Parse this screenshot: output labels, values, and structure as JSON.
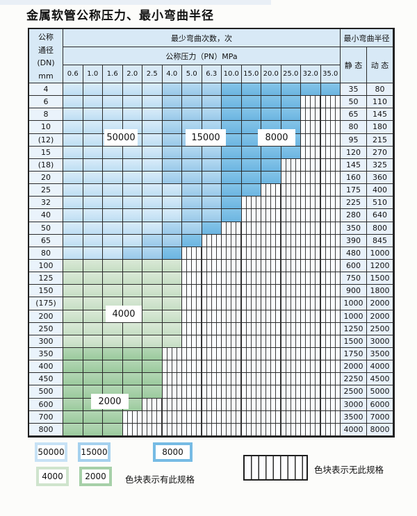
{
  "title": "金属软管公称压力、最小弯曲半径",
  "header": {
    "dn_lines": [
      "公称",
      "通径",
      "(DN)",
      "mm"
    ],
    "bend_times": "最少弯曲次数，次",
    "bend_radius": "最小弯曲半径",
    "pn": "公称压力（PN）MPa",
    "static": "静 态",
    "dynamic": "动 态",
    "pressures": [
      "0.6",
      "1.0",
      "1.6",
      "2.0",
      "2.5",
      "4.0",
      "5.0",
      "6.3",
      "10.0",
      "15.0",
      "20.0",
      "25.0",
      "32.0",
      "35.0"
    ]
  },
  "zone_labels": {
    "z50000": "50000",
    "z15000": "15000",
    "z8000": "8000",
    "z4000": "4000",
    "z2000": "2000"
  },
  "colors": {
    "blue_50000": "#c7e2f5",
    "blue_15000": "#a5d1ee",
    "blue_8000": "#76bbe4",
    "green_4000": "#cfe4cd",
    "green_2000": "#a6d0a8",
    "header_bg": "#d8e9f6",
    "label_col_bg": "#eaf3fb"
  },
  "rows": [
    {
      "dn": "4",
      "cells": [
        "50k",
        "50k",
        "50k",
        "50k",
        "50k",
        "15k",
        "15k",
        "15k",
        "8k",
        "8k",
        "8k",
        "8k",
        "8k",
        "8k"
      ],
      "st": "35",
      "dy": "80"
    },
    {
      "dn": "6",
      "cells": [
        "50k",
        "50k",
        "50k",
        "50k",
        "50k",
        "15k",
        "15k",
        "15k",
        "8k",
        "8k",
        "8k",
        "8k",
        "x",
        "x"
      ],
      "st": "50",
      "dy": "110"
    },
    {
      "dn": "8",
      "cells": [
        "50k",
        "50k",
        "50k",
        "50k",
        "50k",
        "15k",
        "15k",
        "15k",
        "8k",
        "8k",
        "8k",
        "8k",
        "x",
        "x"
      ],
      "st": "65",
      "dy": "145"
    },
    {
      "dn": "10",
      "cells": [
        "50k",
        "50k",
        "50k",
        "50k",
        "50k",
        "15k",
        "15k",
        "15k",
        "8k",
        "8k",
        "8k",
        "8k",
        "x",
        "x"
      ],
      "st": "80",
      "dy": "180"
    },
    {
      "dn": "(12)",
      "cells": [
        "50k",
        "50k",
        "50k",
        "50k",
        "50k",
        "15k",
        "15k",
        "15k",
        "8k",
        "8k",
        "8k",
        "8k",
        "x",
        "x"
      ],
      "st": "95",
      "dy": "215"
    },
    {
      "dn": "15",
      "cells": [
        "50k",
        "50k",
        "50k",
        "50k",
        "50k",
        "15k",
        "15k",
        "15k",
        "8k",
        "8k",
        "8k",
        "8k",
        "x",
        "x"
      ],
      "st": "120",
      "dy": "270"
    },
    {
      "dn": "(18)",
      "cells": [
        "50k",
        "50k",
        "50k",
        "50k",
        "50k",
        "15k",
        "15k",
        "15k",
        "8k",
        "8k",
        "8k",
        "x",
        "x",
        "x"
      ],
      "st": "145",
      "dy": "325"
    },
    {
      "dn": "20",
      "cells": [
        "50k",
        "50k",
        "50k",
        "50k",
        "50k",
        "15k",
        "15k",
        "15k",
        "8k",
        "8k",
        "8k",
        "x",
        "x",
        "x"
      ],
      "st": "160",
      "dy": "360"
    },
    {
      "dn": "25",
      "cells": [
        "50k",
        "50k",
        "50k",
        "50k",
        "50k",
        "50k",
        "15k",
        "15k",
        "8k",
        "8k",
        "x",
        "x",
        "x",
        "x"
      ],
      "st": "175",
      "dy": "400"
    },
    {
      "dn": "32",
      "cells": [
        "50k",
        "50k",
        "50k",
        "50k",
        "50k",
        "50k",
        "15k",
        "15k",
        "8k",
        "x",
        "x",
        "x",
        "x",
        "x"
      ],
      "st": "225",
      "dy": "510"
    },
    {
      "dn": "40",
      "cells": [
        "50k",
        "50k",
        "50k",
        "50k",
        "50k",
        "50k",
        "15k",
        "15k",
        "8k",
        "x",
        "x",
        "x",
        "x",
        "x"
      ],
      "st": "280",
      "dy": "640"
    },
    {
      "dn": "50",
      "cells": [
        "50k",
        "50k",
        "50k",
        "50k",
        "50k",
        "15k",
        "15k",
        "8k",
        "x",
        "x",
        "x",
        "x",
        "x",
        "x"
      ],
      "st": "350",
      "dy": "800"
    },
    {
      "dn": "65",
      "cells": [
        "50k",
        "50k",
        "50k",
        "50k",
        "15k",
        "15k",
        "8k",
        "x",
        "x",
        "x",
        "x",
        "x",
        "x",
        "x"
      ],
      "st": "390",
      "dy": "845"
    },
    {
      "dn": "80",
      "cells": [
        "50k",
        "50k",
        "50k",
        "15k",
        "15k",
        "8k",
        "x",
        "x",
        "x",
        "x",
        "x",
        "x",
        "x",
        "x"
      ],
      "st": "480",
      "dy": "1000"
    },
    {
      "dn": "100",
      "cells": [
        "4k",
        "4k",
        "4k",
        "4k",
        "4k",
        "4k",
        "x",
        "x",
        "x",
        "x",
        "x",
        "x",
        "x",
        "x"
      ],
      "st": "600",
      "dy": "1200"
    },
    {
      "dn": "125",
      "cells": [
        "4k",
        "4k",
        "4k",
        "4k",
        "4k",
        "4k",
        "x",
        "x",
        "x",
        "x",
        "x",
        "x",
        "x",
        "x"
      ],
      "st": "750",
      "dy": "1500"
    },
    {
      "dn": "150",
      "cells": [
        "4k",
        "4k",
        "4k",
        "4k",
        "4k",
        "4k",
        "x",
        "x",
        "x",
        "x",
        "x",
        "x",
        "x",
        "x"
      ],
      "st": "900",
      "dy": "1800"
    },
    {
      "dn": "(175)",
      "cells": [
        "4k",
        "4k",
        "4k",
        "4k",
        "4k",
        "4k",
        "x",
        "x",
        "x",
        "x",
        "x",
        "x",
        "x",
        "x"
      ],
      "st": "1000",
      "dy": "2000"
    },
    {
      "dn": "200",
      "cells": [
        "4k",
        "4k",
        "4k",
        "4k",
        "4k",
        "4k",
        "x",
        "x",
        "x",
        "x",
        "x",
        "x",
        "x",
        "x"
      ],
      "st": "1000",
      "dy": "2000"
    },
    {
      "dn": "250",
      "cells": [
        "4k",
        "4k",
        "4k",
        "4k",
        "4k",
        "4k",
        "x",
        "x",
        "x",
        "x",
        "x",
        "x",
        "x",
        "x"
      ],
      "st": "1250",
      "dy": "2500"
    },
    {
      "dn": "300",
      "cells": [
        "4k",
        "4k",
        "4k",
        "4k",
        "4k",
        "4k",
        "x",
        "x",
        "x",
        "x",
        "x",
        "x",
        "x",
        "x"
      ],
      "st": "1500",
      "dy": "3000"
    },
    {
      "dn": "350",
      "cells": [
        "2k",
        "2k",
        "2k",
        "2k",
        "2k",
        "x",
        "x",
        "x",
        "x",
        "x",
        "x",
        "x",
        "x",
        "x"
      ],
      "st": "1750",
      "dy": "3500"
    },
    {
      "dn": "400",
      "cells": [
        "2k",
        "2k",
        "2k",
        "2k",
        "2k",
        "x",
        "x",
        "x",
        "x",
        "x",
        "x",
        "x",
        "x",
        "x"
      ],
      "st": "2000",
      "dy": "4000"
    },
    {
      "dn": "450",
      "cells": [
        "2k",
        "2k",
        "2k",
        "2k",
        "2k",
        "x",
        "x",
        "x",
        "x",
        "x",
        "x",
        "x",
        "x",
        "x"
      ],
      "st": "2250",
      "dy": "4500"
    },
    {
      "dn": "500",
      "cells": [
        "2k",
        "2k",
        "2k",
        "2k",
        "2k",
        "x",
        "x",
        "x",
        "x",
        "x",
        "x",
        "x",
        "x",
        "x"
      ],
      "st": "2500",
      "dy": "5000"
    },
    {
      "dn": "600",
      "cells": [
        "2k",
        "2k",
        "2k",
        "2k",
        "x",
        "x",
        "x",
        "x",
        "x",
        "x",
        "x",
        "x",
        "x",
        "x"
      ],
      "st": "3000",
      "dy": "6000"
    },
    {
      "dn": "700",
      "cells": [
        "2k",
        "2k",
        "2k",
        "x",
        "x",
        "x",
        "x",
        "x",
        "x",
        "x",
        "x",
        "x",
        "x",
        "x"
      ],
      "st": "3500",
      "dy": "7000"
    },
    {
      "dn": "800",
      "cells": [
        "2k",
        "2k",
        "2k",
        "x",
        "x",
        "x",
        "x",
        "x",
        "x",
        "x",
        "x",
        "x",
        "x",
        "x"
      ],
      "st": "4000",
      "dy": "8000"
    }
  ],
  "legend": {
    "blue_swatches": [
      {
        "label": "50000",
        "color": "#c7e2f5"
      },
      {
        "label": "15000",
        "color": "#a5d1ee"
      },
      {
        "label": "8000",
        "color": "#76bbe4"
      }
    ],
    "green_swatches": [
      {
        "label": "4000",
        "color": "#cfe4cd"
      },
      {
        "label": "2000",
        "color": "#a6d0a8"
      }
    ],
    "note_present": "色块表示有此规格",
    "note_absent": "色块表示无此规格"
  }
}
